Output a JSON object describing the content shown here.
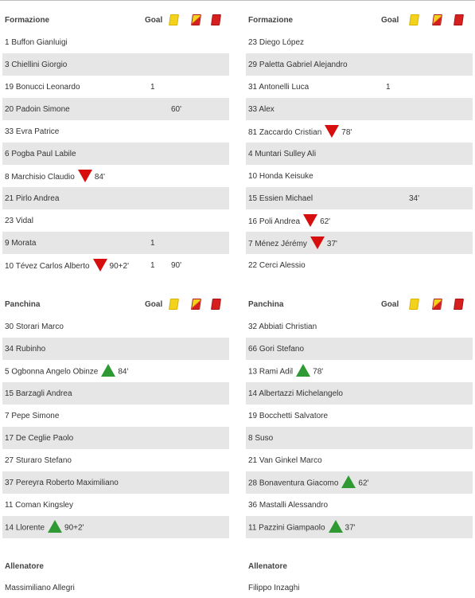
{
  "home": {
    "lineup_title": "Formazione",
    "goal_label": "Goal",
    "lineup": [
      {
        "name": "1 Buffon Gianluigi",
        "sub": "",
        "min": "",
        "goal": "",
        "card_min": ""
      },
      {
        "name": "3 Chiellini Giorgio",
        "sub": "",
        "min": "",
        "goal": "",
        "card_min": ""
      },
      {
        "name": "19 Bonucci Leonardo",
        "sub": "",
        "min": "",
        "goal": "1",
        "card_min": ""
      },
      {
        "name": "20 Padoin Simone",
        "sub": "",
        "min": "",
        "goal": "",
        "card_min": "60'"
      },
      {
        "name": "33 Evra Patrice",
        "sub": "",
        "min": "",
        "goal": "",
        "card_min": ""
      },
      {
        "name": "6 Pogba Paul Labile",
        "sub": "",
        "min": "",
        "goal": "",
        "card_min": ""
      },
      {
        "name": "8 Marchisio Claudio",
        "sub": "out",
        "min": "84'",
        "goal": "",
        "card_min": ""
      },
      {
        "name": "21 Pirlo Andrea",
        "sub": "",
        "min": "",
        "goal": "",
        "card_min": ""
      },
      {
        "name": "23 Vidal",
        "sub": "",
        "min": "",
        "goal": "",
        "card_min": ""
      },
      {
        "name": "9 Morata",
        "sub": "",
        "min": "",
        "goal": "1",
        "card_min": ""
      },
      {
        "name": "10 Tévez Carlos Alberto",
        "sub": "out",
        "min": "90+2'",
        "goal": "1",
        "card_min": "90'"
      }
    ],
    "bench_title": "Panchina",
    "bench": [
      {
        "name": "30 Storari Marco",
        "sub": "",
        "min": ""
      },
      {
        "name": "34 Rubinho",
        "sub": "",
        "min": ""
      },
      {
        "name": "5 Ogbonna Angelo Obinze",
        "sub": "in",
        "min": "84'"
      },
      {
        "name": "15 Barzagli Andrea",
        "sub": "",
        "min": ""
      },
      {
        "name": "7 Pepe Simone",
        "sub": "",
        "min": ""
      },
      {
        "name": "17 De Ceglie Paolo",
        "sub": "",
        "min": ""
      },
      {
        "name": "27 Sturaro Stefano",
        "sub": "",
        "min": ""
      },
      {
        "name": "37 Pereyra Roberto Maximiliano",
        "sub": "",
        "min": ""
      },
      {
        "name": "11 Coman Kingsley",
        "sub": "",
        "min": ""
      },
      {
        "name": "14 Llorente",
        "sub": "in",
        "min": "90+2'"
      }
    ],
    "coach_title": "Allenatore",
    "coach": "Massimiliano Allegri"
  },
  "away": {
    "lineup_title": "Formazione",
    "goal_label": "Goal",
    "lineup": [
      {
        "name": "23 Diego López",
        "sub": "",
        "min": "",
        "goal": "",
        "card_min": ""
      },
      {
        "name": "29 Paletta Gabriel Alejandro",
        "sub": "",
        "min": "",
        "goal": "",
        "card_min": ""
      },
      {
        "name": "31 Antonelli Luca",
        "sub": "",
        "min": "",
        "goal": "1",
        "card_min": ""
      },
      {
        "name": "33 Alex",
        "sub": "",
        "min": "",
        "goal": "",
        "card_min": ""
      },
      {
        "name": "81 Zaccardo Cristian",
        "sub": "out",
        "min": "78'",
        "goal": "",
        "card_min": ""
      },
      {
        "name": "4 Muntari Sulley Ali",
        "sub": "",
        "min": "",
        "goal": "",
        "card_min": ""
      },
      {
        "name": "10 Honda Keisuke",
        "sub": "",
        "min": "",
        "goal": "",
        "card_min": ""
      },
      {
        "name": "15 Essien Michael",
        "sub": "",
        "min": "",
        "goal": "",
        "card_min": "34'"
      },
      {
        "name": "16 Poli Andrea",
        "sub": "out",
        "min": "62'",
        "goal": "",
        "card_min": ""
      },
      {
        "name": "7 Ménez Jérémy",
        "sub": "out",
        "min": "37'",
        "goal": "",
        "card_min": ""
      },
      {
        "name": "22 Cerci Alessio",
        "sub": "",
        "min": "",
        "goal": "",
        "card_min": ""
      }
    ],
    "bench_title": "Panchina",
    "bench": [
      {
        "name": "32 Abbiati Christian",
        "sub": "",
        "min": ""
      },
      {
        "name": "66 Gori Stefano",
        "sub": "",
        "min": ""
      },
      {
        "name": "13 Rami Adil",
        "sub": "in",
        "min": "78'"
      },
      {
        "name": "14 Albertazzi Michelangelo",
        "sub": "",
        "min": ""
      },
      {
        "name": "19 Bocchetti Salvatore",
        "sub": "",
        "min": ""
      },
      {
        "name": "8 Suso",
        "sub": "",
        "min": ""
      },
      {
        "name": "21 Van Ginkel Marco",
        "sub": "",
        "min": ""
      },
      {
        "name": "28 Bonaventura Giacomo",
        "sub": "in",
        "min": "62'"
      },
      {
        "name": "36 Mastalli Alessandro",
        "sub": "",
        "min": ""
      },
      {
        "name": "11 Pazzini Giampaolo",
        "sub": "in",
        "min": "37'"
      }
    ],
    "coach_title": "Allenatore",
    "coach": "Filippo Inzaghi"
  },
  "icons": {
    "yellow_card": "yellow-card-icon",
    "second_yellow": "second-yellow-card-icon",
    "red_card": "red-card-icon",
    "sub_out": "sub-out-arrow-icon",
    "sub_in": "sub-in-arrow-icon"
  },
  "colors": {
    "row_alt": "#e6e6e6",
    "sub_out": "#d60e0e",
    "sub_in": "#2f9a34",
    "yellow": "#f3d21c",
    "red": "#d62020"
  }
}
